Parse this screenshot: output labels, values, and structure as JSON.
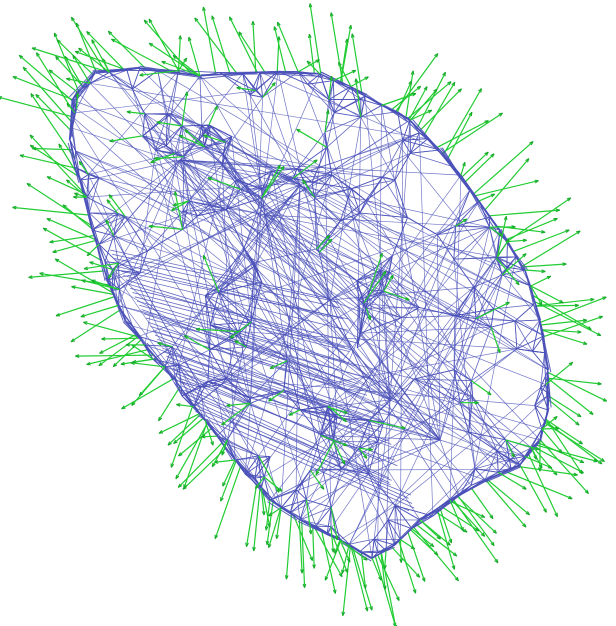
{
  "view": {
    "background_color": "#ffffff",
    "wireframe_color": "#4a50b8",
    "normal_color": "#22cc33",
    "normal_tip_color": "#16a82a"
  },
  "model": {
    "render_mode": "wireframe-with-normals",
    "shape": "irregular rounded lump"
  }
}
